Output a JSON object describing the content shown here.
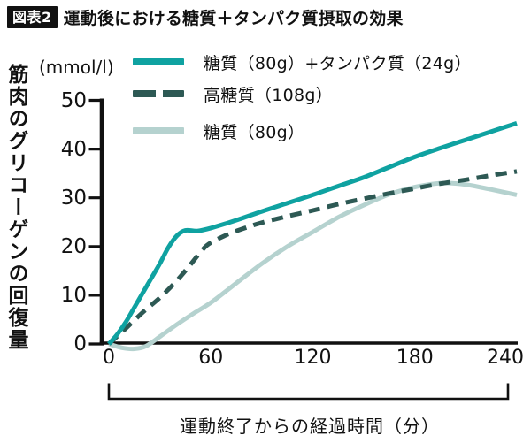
{
  "header": {
    "badge": "図表2",
    "title": "運動後における糖質＋タンパク質摂取の効果"
  },
  "colors": {
    "badge_bg": "#111111",
    "badge_text": "#ffffff",
    "axis": "#111111",
    "series_carb_protein": "#0fa2a1",
    "series_high_carb": "#2d5954",
    "series_carb_only": "#b5d2cf"
  },
  "chart_data": {
    "type": "line",
    "title": "運動後における糖質＋タンパク質摂取の効果",
    "ylabel": "筋肉のグリコーゲンの回復量",
    "y_unit": "(mmol/l)",
    "xlabel": "運動終了からの経過時間（分）",
    "xlim": [
      0,
      240
    ],
    "ylim": [
      0,
      50
    ],
    "x_ticks": [
      0,
      60,
      120,
      180,
      240
    ],
    "y_ticks": [
      0,
      10,
      20,
      30,
      40,
      50
    ],
    "grid": false,
    "legend_position": "top-inside",
    "series": [
      {
        "name": "糖質（80g）+タンパク質（24g）",
        "color": "#0fa2a1",
        "style": "solid",
        "points": [
          [
            0,
            0
          ],
          [
            5,
            2
          ],
          [
            10,
            4.5
          ],
          [
            15,
            7.5
          ],
          [
            20,
            10.5
          ],
          [
            25,
            13.5
          ],
          [
            30,
            16.5
          ],
          [
            35,
            19.8
          ],
          [
            40,
            22.2
          ],
          [
            45,
            23.3
          ],
          [
            52,
            23.2
          ],
          [
            60,
            23.8
          ],
          [
            75,
            25.4
          ],
          [
            90,
            27.2
          ],
          [
            105,
            28.9
          ],
          [
            120,
            30.6
          ],
          [
            135,
            32.4
          ],
          [
            150,
            34.2
          ],
          [
            165,
            36.3
          ],
          [
            180,
            38.4
          ],
          [
            195,
            40.2
          ],
          [
            210,
            41.9
          ],
          [
            225,
            43.6
          ],
          [
            240,
            45.3
          ]
        ]
      },
      {
        "name": "高糖質（108g）",
        "color": "#2d5954",
        "style": "dashed",
        "points": [
          [
            0,
            0
          ],
          [
            10,
            3.2
          ],
          [
            20,
            6.5
          ],
          [
            30,
            9.5
          ],
          [
            40,
            13
          ],
          [
            48,
            16.3
          ],
          [
            55,
            19.3
          ],
          [
            60,
            20.8
          ],
          [
            70,
            22.5
          ],
          [
            80,
            23.8
          ],
          [
            90,
            24.9
          ],
          [
            105,
            26.2
          ],
          [
            120,
            27.4
          ],
          [
            135,
            28.7
          ],
          [
            150,
            29.8
          ],
          [
            165,
            30.9
          ],
          [
            180,
            31.9
          ],
          [
            195,
            32.9
          ],
          [
            210,
            33.7
          ],
          [
            225,
            34.6
          ],
          [
            240,
            35.4
          ]
        ]
      },
      {
        "name": "糖質（80g）",
        "color": "#b5d2cf",
        "style": "solid",
        "points": [
          [
            0,
            0
          ],
          [
            8,
            -0.8
          ],
          [
            15,
            -1
          ],
          [
            22,
            -0.4
          ],
          [
            30,
            1.5
          ],
          [
            40,
            4
          ],
          [
            50,
            6.3
          ],
          [
            60,
            8.5
          ],
          [
            75,
            12.5
          ],
          [
            90,
            16.5
          ],
          [
            105,
            20
          ],
          [
            120,
            23
          ],
          [
            135,
            26
          ],
          [
            150,
            28.5
          ],
          [
            165,
            30.7
          ],
          [
            180,
            32.2
          ],
          [
            192,
            32.9
          ],
          [
            202,
            33
          ],
          [
            212,
            32.6
          ],
          [
            225,
            31.7
          ],
          [
            240,
            30.6
          ]
        ]
      }
    ]
  }
}
